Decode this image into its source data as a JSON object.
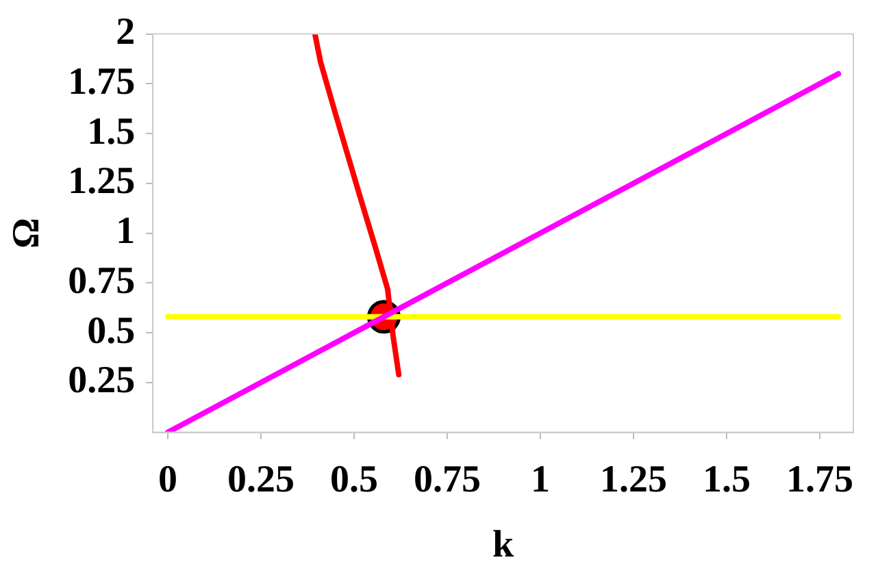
{
  "chart_data": {
    "type": "line",
    "xlabel": "k",
    "ylabel": "Ω",
    "xlim": [
      -0.04,
      1.84
    ],
    "ylim": [
      0,
      2
    ],
    "xticks": [
      0,
      0.25,
      0.5,
      0.75,
      1,
      1.25,
      1.5,
      1.75
    ],
    "yticks": [
      0.25,
      0.5,
      0.75,
      1,
      1.25,
      1.5,
      1.75,
      2
    ],
    "grid": false,
    "legend": false,
    "marker": "none",
    "line_style": "solid",
    "series": [
      {
        "type": "line",
        "color": "#ff00ff",
        "x": [
          0,
          1.8
        ],
        "values": [
          0,
          1.8
        ]
      },
      {
        "type": "line",
        "color": "#ffff00",
        "x": [
          0,
          1.8
        ],
        "values": [
          0.58,
          0.58
        ]
      },
      {
        "type": "line",
        "color": "#ff0000",
        "x": [
          0.395,
          0.41,
          0.45,
          0.515,
          0.557,
          0.59,
          0.605,
          0.62
        ],
        "values": [
          2,
          1.86,
          1.6,
          1.19,
          0.93,
          0.72,
          0.48,
          0.29
        ]
      },
      {
        "type": "scatter",
        "marker": "circle",
        "color": "#ff0000",
        "x": [
          0.58
        ],
        "values": [
          0.58
        ]
      }
    ]
  }
}
